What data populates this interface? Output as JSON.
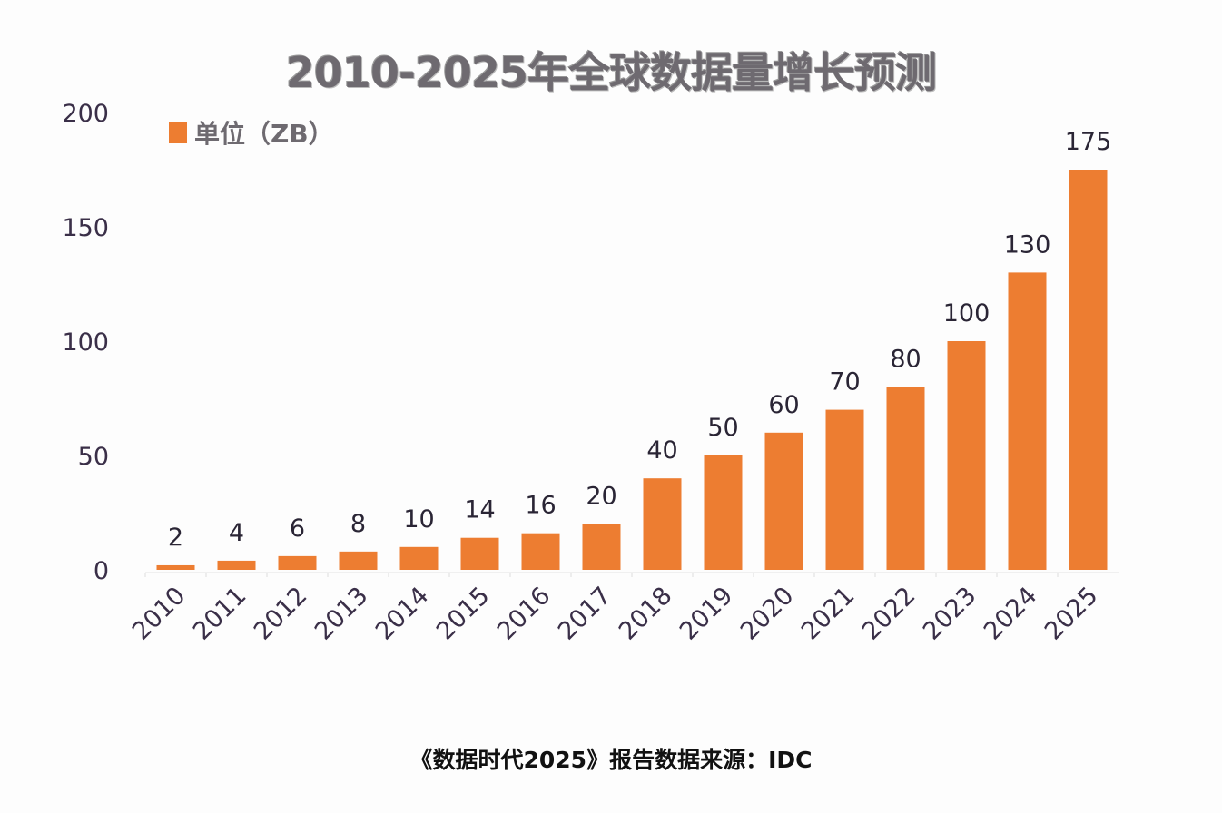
{
  "chart_data": {
    "type": "bar",
    "title": "2010-2025年全球数据量增长预测",
    "legend": {
      "label": "单位（ZB）",
      "placement": "top-left"
    },
    "categories": [
      "2010",
      "2011",
      "2012",
      "2013",
      "2014",
      "2015",
      "2016",
      "2017",
      "2018",
      "2019",
      "2020",
      "2021",
      "2022",
      "2023",
      "2024",
      "2025"
    ],
    "values": [
      2,
      4,
      6,
      8,
      10,
      14,
      16,
      20,
      40,
      50,
      60,
      70,
      80,
      100,
      130,
      175
    ],
    "yticks": [
      0,
      50,
      100,
      150,
      200
    ],
    "ylim": [
      0,
      200
    ],
    "xlabel": "",
    "ylabel": "",
    "grid": false,
    "color": "#ed7d31",
    "source": "《数据时代2025》报告数据来源：IDC"
  }
}
